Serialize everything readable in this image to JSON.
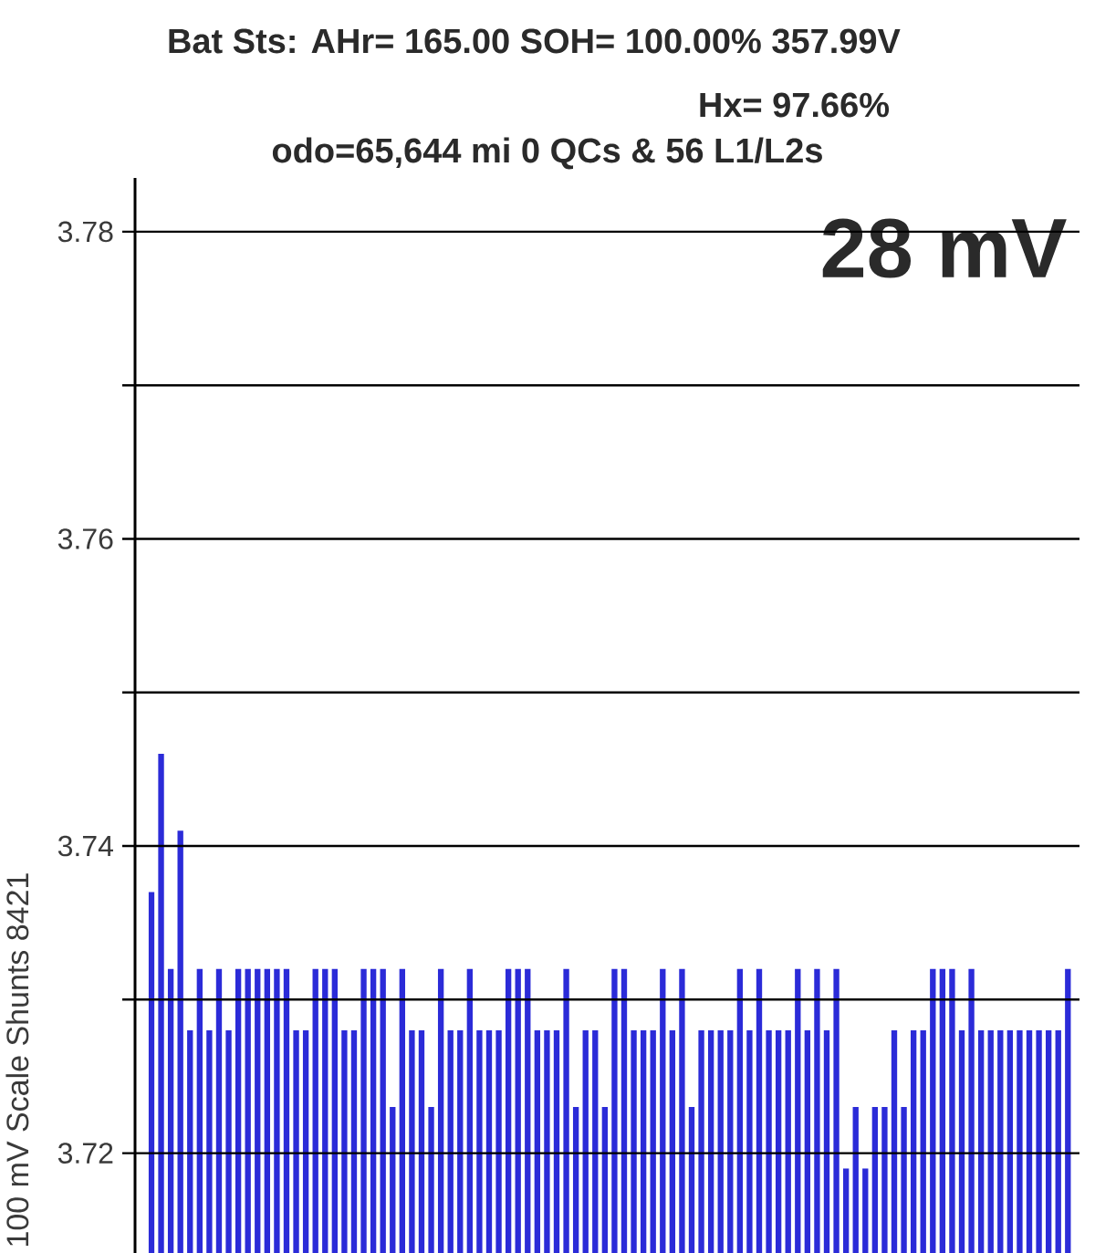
{
  "chart_data": {
    "type": "bar",
    "title": "Bat Sts: AHr= 165.00 SOH= 100.00% 357.99V",
    "subtitle": "Hx= 97.66%",
    "ylabel": "100 mV Scale   Shunts 8421",
    "annotations": [
      "odo=65,644 mi 0 QCs & 56 L1/L2s",
      "28 mV"
    ],
    "categories": [
      null,
      null,
      null,
      null,
      null,
      null,
      null,
      null,
      null,
      null,
      null,
      null,
      null,
      null,
      null,
      null,
      null,
      null,
      null,
      null,
      null,
      null,
      null,
      null,
      null,
      null,
      null,
      null,
      null,
      null,
      null,
      null,
      null,
      null,
      null,
      null,
      null,
      null,
      null,
      null,
      null,
      null,
      null,
      null,
      null,
      null,
      null,
      null,
      null,
      null,
      null,
      null,
      null,
      null,
      null,
      null,
      null,
      null,
      null,
      null,
      null,
      null,
      null,
      null,
      null,
      null,
      null,
      null,
      null,
      null,
      null,
      null,
      null,
      null,
      null,
      null,
      null,
      null,
      null,
      null,
      null,
      null,
      null,
      null,
      null,
      null,
      null,
      null,
      null,
      null,
      null,
      null,
      null,
      null,
      null,
      null
    ],
    "values": [
      3.737,
      3.746,
      3.732,
      3.741,
      3.728,
      3.732,
      3.728,
      3.732,
      3.728,
      3.732,
      3.732,
      3.732,
      3.732,
      3.732,
      3.732,
      3.728,
      3.728,
      3.732,
      3.732,
      3.732,
      3.728,
      3.728,
      3.732,
      3.732,
      3.732,
      3.723,
      3.732,
      3.728,
      3.728,
      3.723,
      3.732,
      3.728,
      3.728,
      3.732,
      3.728,
      3.728,
      3.728,
      3.732,
      3.732,
      3.732,
      3.728,
      3.728,
      3.728,
      3.732,
      3.723,
      3.728,
      3.728,
      3.723,
      3.732,
      3.732,
      3.728,
      3.728,
      3.728,
      3.732,
      3.728,
      3.732,
      3.723,
      3.728,
      3.728,
      3.728,
      3.728,
      3.732,
      3.728,
      3.732,
      3.728,
      3.728,
      3.728,
      3.732,
      3.728,
      3.732,
      3.728,
      3.732,
      3.719,
      3.723,
      3.719,
      3.723,
      3.723,
      3.728,
      3.723,
      3.728,
      3.728,
      3.732,
      3.732,
      3.732,
      3.728,
      3.732,
      3.728,
      3.728,
      3.728,
      3.728,
      3.728,
      3.728,
      3.728,
      3.728,
      3.728,
      3.732
    ],
    "color": "#2b2bd8",
    "ylim": [
      3.7135,
      3.7835
    ],
    "yticks": [
      3.72,
      {
        "value": 3.73,
        "label": null
      },
      3.74,
      {
        "value": 3.75,
        "label": null
      },
      3.76,
      {
        "value": 3.77,
        "label": null
      },
      3.78
    ],
    "tick_labels": "y",
    "grid": "y"
  }
}
